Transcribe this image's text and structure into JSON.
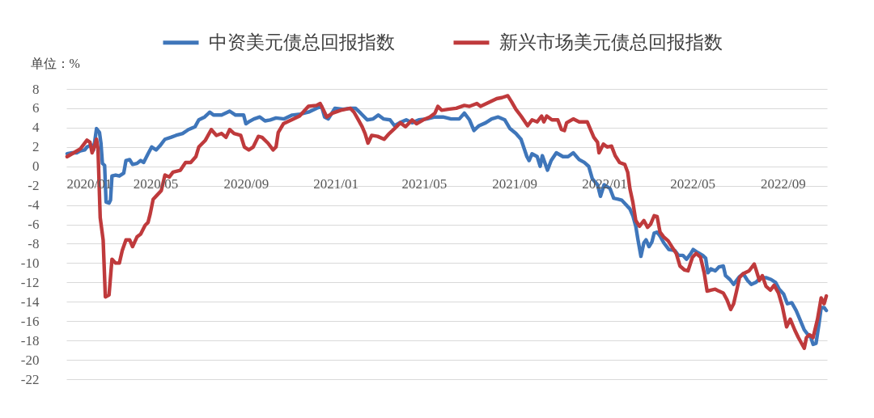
{
  "chart_data": {
    "type": "line",
    "ylabel": "单位：%",
    "series": [
      {
        "name": "中资美元债总回报指数",
        "color": "#3f76ba",
        "x": [
          "2020-01-02",
          "2020-01-09",
          "2020-01-15",
          "2020-01-20",
          "2020-01-26",
          "2020-01-29",
          "2020-02-04",
          "2020-02-07",
          "2020-02-11",
          "2020-02-15",
          "2020-02-17",
          "2020-02-19",
          "2020-02-22",
          "2020-02-24",
          "2020-02-28",
          "2020-03-01",
          "2020-03-03",
          "2020-03-08",
          "2020-03-13",
          "2020-03-19",
          "2020-03-22",
          "2020-03-27",
          "2020-03-31",
          "2020-04-06",
          "2020-04-11",
          "2020-04-15",
          "2020-04-21",
          "2020-04-26",
          "2020-05-02",
          "2020-05-07",
          "2020-05-14",
          "2020-05-22",
          "2020-05-29",
          "2020-06-07",
          "2020-06-15",
          "2020-06-24",
          "2020-06-29",
          "2020-07-07",
          "2020-07-14",
          "2020-07-19",
          "2020-07-30",
          "2020-08-10",
          "2020-08-18",
          "2020-08-29",
          "2020-09-01",
          "2020-09-05",
          "2020-09-12",
          "2020-09-20",
          "2020-09-27",
          "2020-10-04",
          "2020-10-12",
          "2020-10-23",
          "2020-11-03",
          "2020-11-14",
          "2020-11-25",
          "2020-12-06",
          "2020-12-13",
          "2020-12-17",
          "2020-12-22",
          "2020-12-31",
          "2021-01-11",
          "2021-01-22",
          "2021-01-28",
          "2021-02-04",
          "2021-02-13",
          "2021-02-21",
          "2021-02-28",
          "2021-03-07",
          "2021-03-16",
          "2021-03-22",
          "2021-03-29",
          "2021-04-07",
          "2021-04-15",
          "2021-04-24",
          "2021-05-05",
          "2021-05-16",
          "2021-05-27",
          "2021-06-07",
          "2021-06-18",
          "2021-06-25",
          "2021-07-02",
          "2021-07-08",
          "2021-07-15",
          "2021-07-24",
          "2021-08-01",
          "2021-08-10",
          "2021-08-19",
          "2021-08-26",
          "2021-09-03",
          "2021-09-10",
          "2021-09-18",
          "2021-09-21",
          "2021-09-25",
          "2021-10-02",
          "2021-10-06",
          "2021-10-09",
          "2021-10-16",
          "2021-10-21",
          "2021-10-28",
          "2021-11-06",
          "2021-11-13",
          "2021-11-20",
          "2021-11-28",
          "2021-12-05",
          "2021-12-11",
          "2021-12-16",
          "2021-12-23",
          "2021-12-27",
          "2022-01-01",
          "2022-01-09",
          "2022-01-14",
          "2022-01-20",
          "2022-01-25",
          "2022-01-31",
          "2022-02-05",
          "2022-02-09",
          "2022-02-13",
          "2022-02-16",
          "2022-02-20",
          "2022-02-24",
          "2022-02-27",
          "2022-03-03",
          "2022-03-07",
          "2022-03-10",
          "2022-03-14",
          "2022-03-18",
          "2022-03-23",
          "2022-03-30",
          "2022-04-07",
          "2022-04-12",
          "2022-04-18",
          "2022-04-23",
          "2022-04-29",
          "2022-05-02",
          "2022-05-08",
          "2022-05-15",
          "2022-05-19",
          "2022-05-22",
          "2022-05-26",
          "2022-06-01",
          "2022-06-06",
          "2022-06-12",
          "2022-06-15",
          "2022-06-21",
          "2022-06-26",
          "2022-06-30",
          "2022-07-04",
          "2022-07-09",
          "2022-07-15",
          "2022-07-20",
          "2022-07-26",
          "2022-08-02",
          "2022-08-09",
          "2022-08-16",
          "2022-08-22",
          "2022-08-27",
          "2022-09-02",
          "2022-09-07",
          "2022-09-13",
          "2022-09-19",
          "2022-09-24",
          "2022-09-30",
          "2022-10-05",
          "2022-10-09",
          "2022-10-12",
          "2022-10-16",
          "2022-10-20",
          "2022-10-23",
          "2022-10-27",
          "2022-10-30"
        ],
        "values": [
          1.3,
          1.4,
          1.4,
          1.6,
          1.7,
          2.0,
          2.2,
          1.7,
          3.9,
          3.5,
          2.4,
          0.3,
          0.1,
          -3.7,
          -3.8,
          -3.5,
          -1.0,
          -0.9,
          -1.0,
          -0.7,
          0.6,
          0.7,
          0.2,
          0.3,
          0.6,
          0.4,
          1.3,
          2.0,
          1.7,
          2.1,
          2.8,
          3.0,
          3.2,
          3.4,
          3.8,
          4.1,
          4.8,
          5.1,
          5.6,
          5.3,
          5.3,
          5.7,
          5.3,
          5.3,
          4.4,
          4.6,
          4.9,
          5.1,
          4.7,
          4.8,
          5.0,
          4.9,
          5.3,
          5.4,
          5.6,
          6.0,
          6.2,
          5.1,
          4.9,
          6.0,
          5.9,
          6.0,
          6.0,
          5.5,
          4.8,
          4.9,
          5.3,
          4.9,
          4.8,
          4.2,
          4.5,
          4.8,
          4.5,
          4.8,
          4.9,
          5.1,
          5.1,
          4.9,
          4.9,
          5.5,
          4.8,
          3.7,
          4.2,
          4.5,
          4.9,
          5.1,
          4.8,
          3.9,
          3.4,
          2.8,
          1.0,
          0.6,
          1.3,
          1.0,
          0.0,
          1.1,
          -0.4,
          0.6,
          1.4,
          1.0,
          1.0,
          1.4,
          0.7,
          0.4,
          0.0,
          -1.3,
          -1.9,
          -3.1,
          -1.9,
          -2.3,
          -3.3,
          -3.4,
          -3.5,
          -4.0,
          -4.4,
          -5.1,
          -6.2,
          -7.6,
          -9.3,
          -7.9,
          -7.6,
          -8.3,
          -7.8,
          -6.9,
          -6.8,
          -7.2,
          -7.9,
          -8.6,
          -8.7,
          -9.2,
          -9.2,
          -9.6,
          -9.0,
          -8.6,
          -8.9,
          -9.2,
          -9.5,
          -11.0,
          -10.6,
          -10.8,
          -10.4,
          -10.3,
          -11.3,
          -11.7,
          -12.2,
          -11.8,
          -11.4,
          -11.1,
          -11.8,
          -12.2,
          -12.0,
          -11.5,
          -11.5,
          -11.7,
          -12.0,
          -12.7,
          -13.2,
          -14.2,
          -14.1,
          -14.9,
          -15.8,
          -16.9,
          -17.4,
          -17.7,
          -18.4,
          -18.3,
          -16.3,
          -14.6,
          -14.6,
          -14.9
        ]
      },
      {
        "name": "新兴市场美元债总回报指数",
        "color": "#bf3a3c",
        "x": [
          "2020-01-02",
          "2020-01-11",
          "2020-01-20",
          "2020-01-29",
          "2020-02-02",
          "2020-02-05",
          "2020-02-08",
          "2020-02-11",
          "2020-02-13",
          "2020-02-16",
          "2020-02-20",
          "2020-02-23",
          "2020-02-28",
          "2020-03-03",
          "2020-03-08",
          "2020-03-13",
          "2020-03-17",
          "2020-03-22",
          "2020-03-27",
          "2020-03-31",
          "2020-04-06",
          "2020-04-11",
          "2020-04-17",
          "2020-04-21",
          "2020-04-24",
          "2020-04-28",
          "2020-05-03",
          "2020-05-09",
          "2020-05-14",
          "2020-05-20",
          "2020-05-25",
          "2020-06-04",
          "2020-06-11",
          "2020-06-18",
          "2020-06-25",
          "2020-06-29",
          "2020-07-08",
          "2020-07-16",
          "2020-07-23",
          "2020-07-30",
          "2020-08-05",
          "2020-08-10",
          "2020-08-16",
          "2020-08-25",
          "2020-08-30",
          "2020-09-05",
          "2020-09-11",
          "2020-09-18",
          "2020-09-23",
          "2020-10-01",
          "2020-10-08",
          "2020-10-12",
          "2020-10-15",
          "2020-10-22",
          "2020-11-02",
          "2020-11-13",
          "2020-11-25",
          "2020-12-06",
          "2020-12-11",
          "2020-12-15",
          "2020-12-20",
          "2020-12-28",
          "2021-01-08",
          "2021-01-21",
          "2021-01-26",
          "2021-02-01",
          "2021-02-06",
          "2021-02-10",
          "2021-02-14",
          "2021-02-19",
          "2021-02-27",
          "2021-03-08",
          "2021-03-15",
          "2021-03-22",
          "2021-03-30",
          "2021-04-06",
          "2021-04-15",
          "2021-04-21",
          "2021-04-30",
          "2021-05-09",
          "2021-05-16",
          "2021-05-20",
          "2021-05-25",
          "2021-06-03",
          "2021-06-14",
          "2021-06-25",
          "2021-07-02",
          "2021-07-12",
          "2021-07-17",
          "2021-07-28",
          "2021-08-08",
          "2021-08-15",
          "2021-08-23",
          "2021-08-28",
          "2021-09-03",
          "2021-09-10",
          "2021-09-19",
          "2021-09-25",
          "2021-10-02",
          "2021-10-08",
          "2021-10-11",
          "2021-10-15",
          "2021-10-22",
          "2021-10-30",
          "2021-11-04",
          "2021-11-08",
          "2021-11-11",
          "2021-11-20",
          "2021-11-28",
          "2021-12-09",
          "2021-12-14",
          "2021-12-18",
          "2021-12-23",
          "2021-12-25",
          "2021-12-31",
          "2022-01-05",
          "2022-01-11",
          "2022-01-16",
          "2022-01-22",
          "2022-01-29",
          "2022-02-02",
          "2022-02-05",
          "2022-02-09",
          "2022-02-13",
          "2022-02-18",
          "2022-02-24",
          "2022-03-01",
          "2022-03-05",
          "2022-03-10",
          "2022-03-14",
          "2022-03-18",
          "2022-03-23",
          "2022-03-29",
          "2022-04-03",
          "2022-04-09",
          "2022-04-14",
          "2022-04-20",
          "2022-04-25",
          "2022-05-01",
          "2022-05-06",
          "2022-05-12",
          "2022-05-17",
          "2022-05-21",
          "2022-05-26",
          "2022-06-01",
          "2022-06-06",
          "2022-06-12",
          "2022-06-17",
          "2022-06-22",
          "2022-06-26",
          "2022-06-30",
          "2022-07-04",
          "2022-07-09",
          "2022-07-17",
          "2022-07-24",
          "2022-07-27",
          "2022-07-31",
          "2022-08-04",
          "2022-08-09",
          "2022-08-15",
          "2022-08-20",
          "2022-08-26",
          "2022-08-31",
          "2022-09-06",
          "2022-09-11",
          "2022-09-17",
          "2022-09-22",
          "2022-09-30",
          "2022-10-03",
          "2022-10-07",
          "2022-10-12",
          "2022-10-18",
          "2022-10-23",
          "2022-10-27",
          "2022-10-30"
        ],
        "values": [
          1.0,
          1.4,
          1.8,
          2.7,
          2.5,
          1.4,
          2.0,
          2.8,
          1.8,
          -5.3,
          -7.6,
          -13.5,
          -13.3,
          -9.6,
          -10.0,
          -10.0,
          -8.7,
          -7.6,
          -7.6,
          -8.3,
          -7.3,
          -7.0,
          -6.1,
          -5.8,
          -4.9,
          -3.4,
          -3.0,
          -2.5,
          -0.9,
          -1.1,
          -0.6,
          -0.4,
          0.4,
          0.4,
          1.0,
          2.0,
          2.7,
          3.8,
          3.2,
          3.4,
          3.0,
          3.8,
          3.4,
          3.2,
          2.0,
          1.7,
          2.0,
          3.1,
          3.0,
          2.4,
          1.7,
          2.0,
          3.5,
          4.4,
          4.8,
          5.2,
          6.2,
          6.3,
          6.5,
          5.9,
          5.1,
          5.5,
          5.8,
          6.0,
          5.6,
          4.8,
          4.1,
          3.4,
          2.4,
          3.2,
          3.1,
          2.8,
          3.4,
          3.9,
          4.5,
          4.1,
          4.8,
          4.4,
          4.8,
          5.1,
          5.5,
          6.2,
          5.8,
          5.9,
          6.0,
          6.3,
          6.2,
          6.5,
          6.2,
          6.6,
          7.0,
          7.1,
          7.3,
          6.7,
          5.9,
          5.2,
          4.2,
          4.8,
          4.6,
          5.2,
          4.6,
          5.2,
          4.8,
          4.8,
          3.8,
          3.7,
          4.5,
          4.9,
          4.6,
          4.6,
          3.7,
          3.0,
          2.5,
          1.4,
          2.3,
          2.0,
          2.1,
          1.1,
          0.4,
          0.2,
          -0.6,
          -2.3,
          -3.7,
          -5.6,
          -6.2,
          -5.6,
          -6.3,
          -6.0,
          -5.1,
          -5.2,
          -6.8,
          -7.3,
          -7.7,
          -8.3,
          -9.0,
          -10.3,
          -10.7,
          -10.8,
          -9.4,
          -9.0,
          -9.4,
          -11.0,
          -12.9,
          -12.8,
          -12.7,
          -12.9,
          -13.1,
          -13.8,
          -14.8,
          -14.2,
          -12.9,
          -11.5,
          -11.1,
          -10.8,
          -10.1,
          -10.8,
          -11.8,
          -11.3,
          -12.4,
          -12.8,
          -12.3,
          -13.1,
          -14.4,
          -16.6,
          -15.8,
          -16.9,
          -17.7,
          -18.8,
          -17.7,
          -17.4,
          -17.7,
          -15.8,
          -13.6,
          -14.2,
          -13.4
        ]
      }
    ],
    "xlim": [
      "2020-01-01",
      "2022-10-31"
    ],
    "xticks": [
      {
        "value": "2020-01",
        "label": "2020/01"
      },
      {
        "value": "2020-05",
        "label": "2020/05"
      },
      {
        "value": "2020-09",
        "label": "2020/09"
      },
      {
        "value": "2021-01",
        "label": "2021/01"
      },
      {
        "value": "2021-05",
        "label": "2021/05"
      },
      {
        "value": "2021-09",
        "label": "2021/09"
      },
      {
        "value": "2022-01",
        "label": "2022/01"
      },
      {
        "value": "2022-05",
        "label": "2022/05"
      },
      {
        "value": "2022-09",
        "label": "2022/09"
      }
    ],
    "ylim": [
      -22,
      8
    ],
    "yticks": [
      -22,
      -20,
      -18,
      -16,
      -14,
      -12,
      -10,
      -8,
      -6,
      -4,
      -2,
      0,
      2,
      4,
      6,
      8
    ],
    "grid": "y",
    "legend": "top"
  }
}
